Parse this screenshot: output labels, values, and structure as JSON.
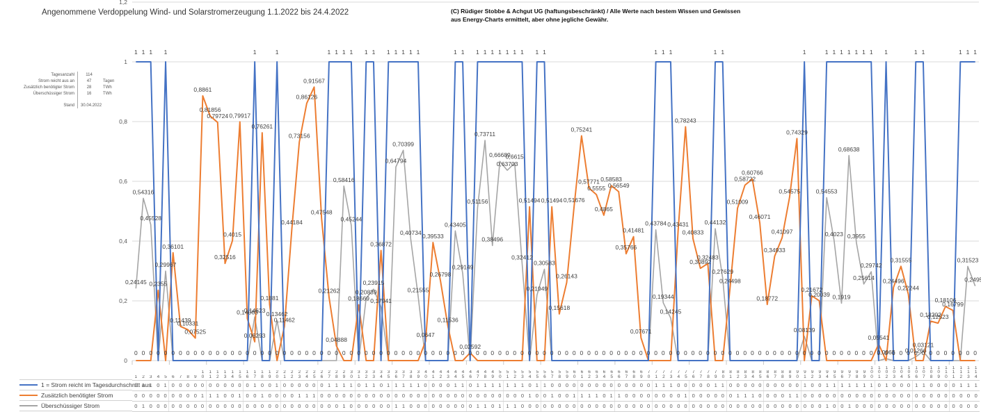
{
  "title": "Angenommene Verdoppelung Wind- und Solarstromerzeugung 1.1.2022 bis 24.4.2022",
  "copyright": "(C) Rüdiger Stobbe & Achgut UG (haftungsbeschränkt) / Alle Werte nach bestem Wissen und Gewissen aus Energy-Charts ermittelt, aber ohne jegliche Gewähr.",
  "stats": {
    "rows": [
      {
        "label": "Tagesanzahl",
        "value": "114",
        "unit": ""
      },
      {
        "label": "Strom reicht aus an",
        "value": "47",
        "unit": "Tagen"
      },
      {
        "label": "Zusätzlich benötigter Strom",
        "value": "28",
        "unit": "TWh"
      },
      {
        "label": "Überschüssiger Strom",
        "value": "16",
        "unit": "TWh"
      }
    ],
    "stand_label": "Stand",
    "stand_value": "30.04.2022"
  },
  "chart_data": {
    "type": "line",
    "days": 114,
    "x_label_range": "1-114",
    "ylim": [
      0,
      1.2
    ],
    "y_ticks": [
      "0",
      "0,2",
      "0,4",
      "0,6",
      "0,8",
      "1",
      "1,2"
    ],
    "grid": true,
    "legend_position": "bottom-left-table",
    "colors": {
      "blue": "#4472C4",
      "orange": "#ED7D31",
      "gray": "#A5A5A5",
      "gridline": "#D9D9D9",
      "label_text": "#404040"
    },
    "series": [
      {
        "name": "1 = Strom reicht im Tagesdurchschnitt aus",
        "color": "#4472C4",
        "values": [
          1,
          1,
          1,
          0,
          1,
          0,
          0,
          0,
          0,
          0,
          0,
          0,
          0,
          0,
          0,
          0,
          1,
          0,
          0,
          1,
          0,
          0,
          0,
          0,
          0,
          0,
          1,
          1,
          1,
          1,
          0,
          1,
          1,
          0,
          1,
          1,
          1,
          1,
          1,
          0,
          0,
          0,
          0,
          1,
          1,
          0,
          1,
          1,
          1,
          1,
          1,
          1,
          1,
          0,
          1,
          1,
          0,
          0,
          0,
          0,
          0,
          0,
          0,
          0,
          0,
          0,
          0,
          0,
          0,
          0,
          1,
          1,
          1,
          0,
          0,
          0,
          0,
          0,
          1,
          1,
          0,
          0,
          0,
          0,
          0,
          0,
          0,
          0,
          0,
          0,
          1,
          0,
          0,
          1,
          1,
          1,
          1,
          1,
          1,
          1,
          0,
          1,
          0,
          0,
          0,
          1,
          1,
          0,
          0,
          0,
          0,
          1,
          1,
          1
        ]
      },
      {
        "name": "Zusätzlich benötigter Strom",
        "color": "#ED7D31",
        "values": [
          0,
          0,
          0,
          0.2355,
          0,
          0.36101,
          0.11439,
          0.10331,
          0.07525,
          0.8861,
          0.81856,
          0.79724,
          0.32516,
          0.4015,
          0.79917,
          0.14063,
          0.06293,
          0.76261,
          0.1881,
          0,
          0.11462,
          0.44184,
          0.73156,
          0.86126,
          0.91567,
          0.47548,
          0.21262,
          0.04888,
          0,
          0,
          0.18669,
          0,
          0,
          0.36872,
          0,
          0,
          0,
          0,
          0,
          0.0647,
          0.39533,
          0.26798,
          0.11536,
          0,
          0,
          0.02592,
          0,
          0,
          0,
          0,
          0,
          0,
          0,
          0.51494,
          0,
          0,
          0.51494,
          0.15618,
          0.26143,
          0.51676,
          0.75241,
          0.57771,
          0.5555,
          0.4865,
          0.58583,
          0.56549,
          0.35766,
          0.41481,
          0.07671,
          0,
          0,
          0,
          0,
          0.43431,
          0.78243,
          0.40833,
          0.30892,
          0.32483,
          0,
          0,
          0.24498,
          0.51009,
          0.58722,
          0.60766,
          0.46071,
          0.18772,
          0.34933,
          0.41097,
          0.54575,
          0.74329,
          0,
          0.21672,
          0.20039,
          0,
          0,
          0,
          0,
          0,
          0,
          0,
          0.05541,
          0,
          0.24496,
          0.31555,
          0.22244,
          0,
          0,
          0.13202,
          0.12523,
          0.18106,
          0.16799,
          0,
          0,
          0
        ]
      },
      {
        "name": "Überschüssiger Strom",
        "color": "#A5A5A5",
        "values": [
          0.24145,
          0.54316,
          0.45528,
          0,
          0.29967,
          0,
          0,
          0,
          0,
          0,
          0,
          0,
          0,
          0,
          0,
          0,
          0.14623,
          0,
          0,
          0.13462,
          0,
          0,
          0,
          0,
          0,
          0,
          0,
          0,
          0.58416,
          0.45244,
          0,
          0.20839,
          0.23915,
          0.17941,
          0,
          0.64794,
          0.70399,
          0.40734,
          0.21555,
          0,
          0,
          0,
          0,
          0.43405,
          0.29149,
          0,
          0.51156,
          0.73711,
          0.38496,
          0.66689,
          0.63703,
          0.6615,
          0.32412,
          0,
          0.21949,
          0.30583,
          0,
          0,
          0,
          0,
          0,
          0,
          0,
          0,
          0,
          0,
          0,
          0,
          0,
          0,
          0.43784,
          0.19344,
          0.14245,
          0,
          0,
          0,
          0,
          0,
          0.44132,
          0.27629,
          0,
          0,
          0,
          0,
          0,
          0,
          0,
          0,
          0,
          0,
          0.08139,
          0,
          0,
          0.54553,
          0.4023,
          0.1919,
          0.68638,
          0.3955,
          0.25614,
          0.29742,
          0,
          0.0065,
          0,
          0,
          0,
          0.01266,
          0.03121,
          0,
          0,
          0,
          0,
          0,
          0.31523,
          0.24954
        ]
      }
    ]
  }
}
